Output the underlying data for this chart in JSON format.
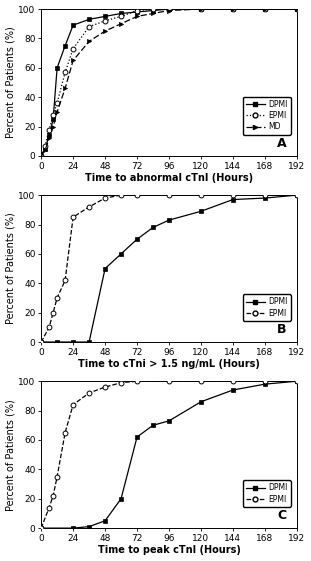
{
  "panel_A": {
    "title": "A",
    "xlabel": "Time to abnormal cTnI (Hours)",
    "ylabel": "Percent of Patients (%)",
    "xlim": [
      0,
      192
    ],
    "ylim": [
      0,
      100
    ],
    "xticks": [
      0,
      24,
      48,
      72,
      96,
      120,
      144,
      168,
      192
    ],
    "yticks": [
      0,
      20,
      40,
      60,
      80,
      100
    ],
    "DPMI_x": [
      0,
      3,
      6,
      9,
      12,
      18,
      24,
      36,
      48,
      60,
      72,
      84,
      96,
      120,
      144,
      168,
      192
    ],
    "DPMI_y": [
      0,
      5,
      14,
      25,
      60,
      75,
      89,
      93,
      95,
      97,
      98,
      99,
      100,
      100,
      100,
      100,
      100
    ],
    "EPMI_x": [
      0,
      3,
      6,
      9,
      12,
      18,
      24,
      36,
      48,
      60,
      72,
      84,
      96,
      120,
      144,
      168,
      192
    ],
    "EPMI_y": [
      0,
      7,
      18,
      28,
      36,
      57,
      73,
      88,
      92,
      95,
      99,
      100,
      100,
      100,
      100,
      100,
      100
    ],
    "MD_x": [
      0,
      3,
      6,
      9,
      12,
      18,
      24,
      36,
      48,
      60,
      72,
      84,
      96,
      120,
      144,
      168,
      192
    ],
    "MD_y": [
      0,
      4,
      12,
      20,
      30,
      46,
      65,
      78,
      85,
      90,
      95,
      97,
      99,
      100,
      100,
      100,
      100
    ]
  },
  "panel_B": {
    "title": "B",
    "xlabel": "Time to cTni > 1.5 ng/mL (Hours)",
    "ylabel": "Percent of Patients (%)",
    "xlim": [
      0,
      192
    ],
    "ylim": [
      0,
      100
    ],
    "xticks": [
      0,
      24,
      48,
      72,
      96,
      120,
      144,
      168,
      192
    ],
    "yticks": [
      0,
      20,
      40,
      60,
      80,
      100
    ],
    "DPMI_x": [
      0,
      12,
      24,
      36,
      48,
      60,
      72,
      84,
      96,
      120,
      144,
      168,
      192
    ],
    "DPMI_y": [
      0,
      0,
      0,
      0,
      50,
      60,
      70,
      78,
      83,
      89,
      97,
      98,
      100
    ],
    "EPMI_x": [
      0,
      6,
      9,
      12,
      18,
      24,
      36,
      48,
      60,
      72,
      96,
      120,
      144,
      168,
      192
    ],
    "EPMI_y": [
      0,
      10,
      20,
      30,
      42,
      85,
      92,
      98,
      100,
      100,
      100,
      100,
      100,
      100,
      100
    ]
  },
  "panel_C": {
    "title": "C",
    "xlabel": "Time to peak cTnI (Hours)",
    "ylabel": "Percent of Patients (%)",
    "xlim": [
      0,
      192
    ],
    "ylim": [
      0,
      100
    ],
    "xticks": [
      0,
      24,
      48,
      72,
      96,
      120,
      144,
      168,
      192
    ],
    "yticks": [
      0,
      20,
      40,
      60,
      80,
      100
    ],
    "DPMI_x": [
      0,
      24,
      36,
      48,
      60,
      72,
      84,
      96,
      120,
      144,
      168,
      192
    ],
    "DPMI_y": [
      0,
      0,
      1,
      5,
      20,
      62,
      70,
      73,
      86,
      94,
      98,
      100
    ],
    "EPMI_x": [
      0,
      6,
      9,
      12,
      18,
      24,
      36,
      48,
      60,
      72,
      96,
      120,
      144,
      168,
      192
    ],
    "EPMI_y": [
      0,
      14,
      22,
      35,
      65,
      84,
      92,
      96,
      99,
      100,
      100,
      100,
      100,
      100,
      100
    ]
  },
  "font_size": 7,
  "label_font_size": 7,
  "tick_font_size": 6.5
}
